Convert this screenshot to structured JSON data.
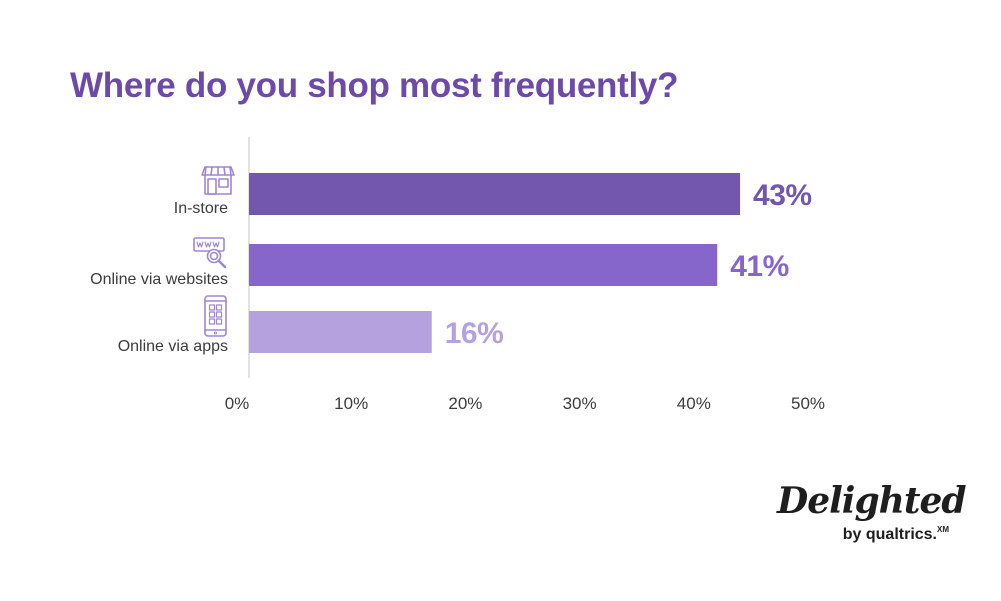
{
  "chart_data": {
    "type": "bar",
    "orientation": "horizontal",
    "title": "Where do you shop most frequently?",
    "categories": [
      "In-store",
      "Online via websites",
      "Online via apps"
    ],
    "values": [
      43,
      41,
      16
    ],
    "value_labels": [
      "43%",
      "41%",
      "16%"
    ],
    "category_icons": [
      "storefront-icon",
      "website-search-icon",
      "mobile-app-icon"
    ],
    "bar_colors": [
      "#7356ad",
      "#8666cb",
      "#b5a1dd"
    ],
    "xlim": [
      0,
      50
    ],
    "x_ticks": [
      0,
      10,
      20,
      30,
      40,
      50
    ],
    "x_tick_labels": [
      "0%",
      "10%",
      "20%",
      "30%",
      "40%",
      "50%"
    ],
    "xlabel": "",
    "ylabel": "",
    "grid": false,
    "legend": "none"
  },
  "brand": {
    "name": "Delighted",
    "byline": "by qualtrics.",
    "byline_mark": "XM"
  },
  "colors": {
    "title": "#6e4aa8",
    "axis": "#d9d9d9",
    "text": "#3c3c3c",
    "icon": "#9e86d2"
  }
}
